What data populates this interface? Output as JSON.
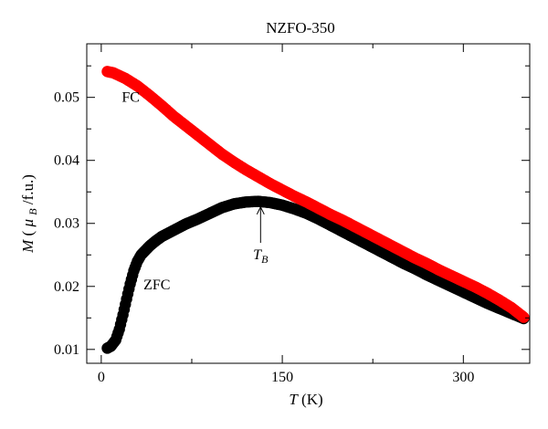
{
  "chart_data": {
    "type": "scatter",
    "title": "NZFO-350",
    "xlabel": {
      "var": "T",
      "unit": "(K)"
    },
    "ylabel": {
      "var": "M",
      "paren_open": "(",
      "mu": "μ",
      "sub": "B",
      "rest": "/f.u.)"
    },
    "xlim": [
      -12,
      355
    ],
    "ylim": [
      0.0078,
      0.0585
    ],
    "x_ticks": [
      0,
      150,
      300
    ],
    "x_tick_labels": [
      "0",
      "150",
      "300"
    ],
    "x_minor_ticks": [
      75,
      225
    ],
    "y_ticks": [
      0.01,
      0.02,
      0.03,
      0.04,
      0.05
    ],
    "y_tick_labels": [
      "0.01",
      "0.02",
      "0.03",
      "0.04",
      "0.05"
    ],
    "y_minor_ticks": [
      0.015,
      0.025,
      0.035,
      0.045,
      0.055
    ],
    "series": [
      {
        "name": "ZFC",
        "color": "#000000",
        "x": [
          5,
          8,
          12,
          15,
          18,
          21,
          24,
          27,
          30,
          33,
          36,
          40,
          45,
          50,
          55,
          60,
          65,
          70,
          75,
          80,
          90,
          100,
          110,
          120,
          130,
          140,
          150,
          160,
          170,
          180,
          190,
          200,
          210,
          220,
          230,
          240,
          250,
          260,
          270,
          280,
          290,
          300,
          310,
          320,
          330,
          340,
          350
        ],
        "y": [
          0.0102,
          0.0105,
          0.0115,
          0.0132,
          0.0155,
          0.018,
          0.0204,
          0.0225,
          0.024,
          0.025,
          0.0256,
          0.0264,
          0.0272,
          0.0279,
          0.0284,
          0.0289,
          0.0294,
          0.0299,
          0.0303,
          0.0307,
          0.0316,
          0.0325,
          0.0331,
          0.0334,
          0.0335,
          0.0333,
          0.0329,
          0.0323,
          0.0316,
          0.0307,
          0.0297,
          0.0287,
          0.0277,
          0.0267,
          0.0257,
          0.0247,
          0.0237,
          0.0228,
          0.0218,
          0.0209,
          0.02,
          0.0191,
          0.0182,
          0.0173,
          0.0165,
          0.0157,
          0.0149
        ]
      },
      {
        "name": "FC",
        "color": "#ff0000",
        "x": [
          5,
          10,
          20,
          30,
          40,
          50,
          60,
          70,
          80,
          90,
          100,
          110,
          120,
          130,
          140,
          150,
          160,
          170,
          180,
          190,
          200,
          210,
          220,
          230,
          240,
          250,
          260,
          270,
          280,
          290,
          300,
          310,
          320,
          330,
          340,
          350
        ],
        "y": [
          0.0541,
          0.0539,
          0.053,
          0.0518,
          0.0503,
          0.0487,
          0.047,
          0.0455,
          0.044,
          0.0425,
          0.041,
          0.0397,
          0.0385,
          0.0374,
          0.0363,
          0.0353,
          0.0343,
          0.0334,
          0.0324,
          0.0314,
          0.0305,
          0.0295,
          0.0285,
          0.0275,
          0.0265,
          0.0255,
          0.0245,
          0.0236,
          0.0226,
          0.0217,
          0.0208,
          0.0199,
          0.0189,
          0.0178,
          0.0166,
          0.0151
        ]
      }
    ],
    "annotations": [
      {
        "text": "FC",
        "x": 17,
        "y": 0.0493
      },
      {
        "text": "ZFC",
        "x": 35,
        "y": 0.0195
      },
      {
        "text": "T",
        "sub": "B",
        "x": 132,
        "y": 0.0243,
        "arrow_to": [
          132,
          0.0326
        ]
      }
    ]
  }
}
